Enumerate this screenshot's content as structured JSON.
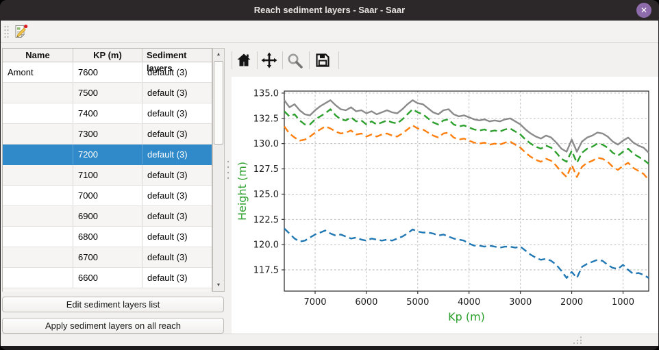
{
  "window": {
    "title": "Reach sediment layers - Saar - Saar"
  },
  "titlebar": {
    "close_label": "✕"
  },
  "icons": {
    "titlebar_close": "close-icon",
    "toolbar_edit": "edit-sediment-layers-icon",
    "mpl": [
      "home-icon",
      "pan-icon",
      "zoom-icon",
      "save-icon"
    ],
    "scroll_up": "▲",
    "scroll_down": "▼"
  },
  "table": {
    "columns": [
      "Name",
      "KP (m)",
      "Sediment layers"
    ],
    "selected_row_index": 4,
    "rows": [
      [
        "Amont",
        "7600",
        "default (3)"
      ],
      [
        "",
        "7500",
        "default (3)"
      ],
      [
        "",
        "7400",
        "default (3)"
      ],
      [
        "",
        "7300",
        "default (3)"
      ],
      [
        "",
        "7200",
        "default (3)"
      ],
      [
        "",
        "7100",
        "default (3)"
      ],
      [
        "",
        "7000",
        "default (3)"
      ],
      [
        "",
        "6900",
        "default (3)"
      ],
      [
        "",
        "6800",
        "default (3)"
      ],
      [
        "",
        "6700",
        "default (3)"
      ],
      [
        "",
        "6600",
        "default (3)"
      ]
    ]
  },
  "actions": {
    "edit_list": "Edit sediment layers list",
    "apply_all": "Apply sediment layers on all reach"
  },
  "colors": {
    "selection": "#3089c8",
    "titlebar": "#2c2829",
    "close_button": "#8e6cab",
    "axis_label": "#2ca02c",
    "series_gray": "#8a8a8a",
    "series_green": "#2ca02c",
    "series_orange": "#ff7f0e",
    "series_blue": "#1f77b4"
  },
  "chart_data": {
    "type": "line",
    "xlabel": "Kp (m)",
    "ylabel": "Height (m)",
    "x_reversed": true,
    "xlim": [
      7600,
      500
    ],
    "ylim": [
      115.4,
      135.2
    ],
    "xticks": [
      7000,
      6000,
      5000,
      4000,
      3000,
      2000,
      1000
    ],
    "yticks": [
      117.5,
      120.0,
      122.5,
      125.0,
      127.5,
      130.0,
      132.5,
      135.0
    ],
    "grid": true,
    "legend": false,
    "axis_label_color": "#2ca02c",
    "x": [
      7600,
      7500,
      7400,
      7300,
      7200,
      7100,
      7000,
      6900,
      6800,
      6700,
      6600,
      6500,
      6400,
      6300,
      6200,
      6100,
      6000,
      5900,
      5800,
      5700,
      5600,
      5500,
      5400,
      5300,
      5200,
      5100,
      5000,
      4900,
      4800,
      4700,
      4600,
      4500,
      4400,
      4300,
      4200,
      4100,
      4000,
      3900,
      3800,
      3700,
      3600,
      3500,
      3400,
      3300,
      3200,
      3100,
      3000,
      2900,
      2800,
      2700,
      2600,
      2500,
      2400,
      2300,
      2200,
      2100,
      2000,
      1900,
      1800,
      1700,
      1600,
      1500,
      1400,
      1300,
      1200,
      1100,
      1000,
      900,
      800,
      700,
      600,
      500
    ],
    "series": [
      {
        "name": "top-profile-gray",
        "color": "#8a8a8a",
        "style": "solid",
        "values": [
          134.3,
          133.6,
          133.9,
          133.3,
          132.9,
          132.8,
          133.3,
          133.7,
          134.0,
          134.3,
          133.8,
          133.4,
          133.3,
          133.6,
          133.2,
          133.3,
          133.0,
          133.2,
          132.9,
          133.1,
          133.3,
          133.1,
          133.0,
          133.4,
          133.9,
          134.3,
          134.0,
          133.9,
          133.5,
          133.1,
          132.9,
          133.3,
          133.4,
          132.9,
          132.7,
          132.8,
          132.6,
          132.4,
          132.3,
          132.4,
          132.2,
          132.3,
          132.2,
          132.4,
          132.5,
          132.2,
          131.9,
          131.4,
          131.0,
          130.7,
          130.5,
          130.8,
          130.6,
          130.1,
          129.5,
          129.2,
          130.4,
          129.2,
          130.2,
          130.6,
          130.8,
          131.1,
          131.0,
          130.7,
          130.2,
          129.9,
          130.3,
          130.6,
          130.1,
          129.8,
          129.6,
          129.1
        ]
      },
      {
        "name": "sediment-layer-green",
        "color": "#2ca02c",
        "style": "dashed",
        "values": [
          133.2,
          132.7,
          132.9,
          132.3,
          131.9,
          131.9,
          132.4,
          132.7,
          133.0,
          133.4,
          132.8,
          132.4,
          132.3,
          132.6,
          132.2,
          132.3,
          131.9,
          132.2,
          131.9,
          132.1,
          132.3,
          132.1,
          132.0,
          132.4,
          132.9,
          133.4,
          133.1,
          132.9,
          132.5,
          132.1,
          131.9,
          132.3,
          132.4,
          131.9,
          131.7,
          131.8,
          131.6,
          131.4,
          131.3,
          131.4,
          131.2,
          131.3,
          131.2,
          131.4,
          131.5,
          131.2,
          130.9,
          130.4,
          130.0,
          129.7,
          129.5,
          129.8,
          129.6,
          129.1,
          128.5,
          128.2,
          129.3,
          128.1,
          129.1,
          129.5,
          129.7,
          130.0,
          129.9,
          129.6,
          129.1,
          128.8,
          129.2,
          129.5,
          129.0,
          128.7,
          128.4,
          128.0
        ]
      },
      {
        "name": "sediment-layer-orange",
        "color": "#ff7f0e",
        "style": "dashed",
        "values": [
          131.7,
          131.0,
          130.6,
          130.3,
          130.4,
          130.7,
          131.1,
          131.4,
          131.7,
          131.5,
          131.2,
          131.0,
          131.1,
          131.3,
          130.9,
          131.0,
          130.7,
          130.9,
          130.7,
          130.9,
          131.0,
          130.8,
          130.7,
          131.0,
          131.4,
          131.8,
          131.5,
          131.4,
          131.1,
          130.8,
          130.6,
          131.0,
          131.1,
          130.6,
          130.4,
          130.5,
          130.3,
          130.1,
          130.0,
          130.1,
          129.9,
          130.0,
          129.9,
          130.1,
          130.2,
          129.9,
          129.6,
          129.1,
          128.7,
          128.4,
          128.2,
          128.5,
          128.3,
          127.8,
          127.2,
          126.7,
          127.9,
          126.7,
          127.7,
          128.1,
          128.3,
          128.6,
          128.5,
          128.2,
          127.7,
          127.4,
          127.8,
          128.1,
          127.6,
          127.3,
          127.0,
          126.4
        ]
      },
      {
        "name": "bottom-layer-blue",
        "color": "#1f77b4",
        "style": "dashed",
        "values": [
          121.6,
          121.1,
          120.6,
          120.3,
          120.4,
          120.7,
          121.0,
          121.2,
          121.4,
          121.1,
          120.9,
          121.0,
          120.8,
          120.6,
          120.7,
          120.5,
          120.4,
          120.6,
          120.5,
          120.4,
          120.5,
          120.4,
          120.6,
          120.8,
          121.1,
          121.5,
          121.3,
          121.2,
          121.2,
          121.1,
          120.9,
          121.0,
          120.8,
          120.6,
          120.5,
          120.4,
          120.1,
          119.9,
          119.9,
          119.8,
          119.9,
          119.8,
          119.7,
          119.8,
          119.8,
          119.7,
          119.8,
          119.4,
          119.0,
          118.7,
          118.5,
          118.6,
          118.4,
          118.0,
          117.4,
          116.7,
          117.3,
          116.7,
          117.8,
          118.1,
          118.3,
          118.5,
          118.4,
          118.0,
          117.7,
          117.6,
          118.0,
          117.5,
          117.1,
          117.2,
          117.0,
          116.7
        ]
      }
    ]
  }
}
